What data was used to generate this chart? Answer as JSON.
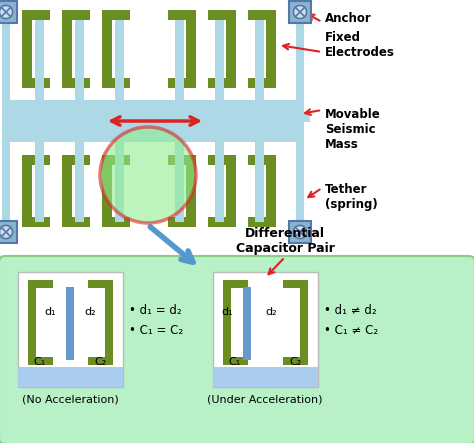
{
  "fig_width": 4.74,
  "fig_height": 4.43,
  "dpi": 100,
  "bg_white": "#ffffff",
  "top_bg": "#ddeeff",
  "lgreen": "#6b8e23",
  "lblue": "#add8e6",
  "blue_bar": "#6699cc",
  "anchor_fill": "#8ab4cc",
  "anchor_edge": "#5577aa",
  "red": "#dd2222",
  "arrow_blue": "#5599cc",
  "bottom_bg": "#b8f0c8",
  "bottom_edge": "#88cc88",
  "cap_bottom_blue": "#aaccee",
  "highlight_green": "#90ee90",
  "labels": {
    "anchor": "Anchor",
    "fixed_electrodes": "Fixed\nElectrodes",
    "movable_mass": "Movable\nSeismic\nMass",
    "tether": "Tether\n(spring)",
    "diff_cap": "Differential\nCapacitor Pair",
    "no_accel": "(No Acceleration)",
    "under_accel": "(Under Acceleration)",
    "d1_eq": "• d₁ = d₂",
    "c1_eq": "• C₁ = C₂",
    "d1_neq": "• d₁ ≠ d₂",
    "c1_neq": "• C₁ ≠ C₂"
  }
}
